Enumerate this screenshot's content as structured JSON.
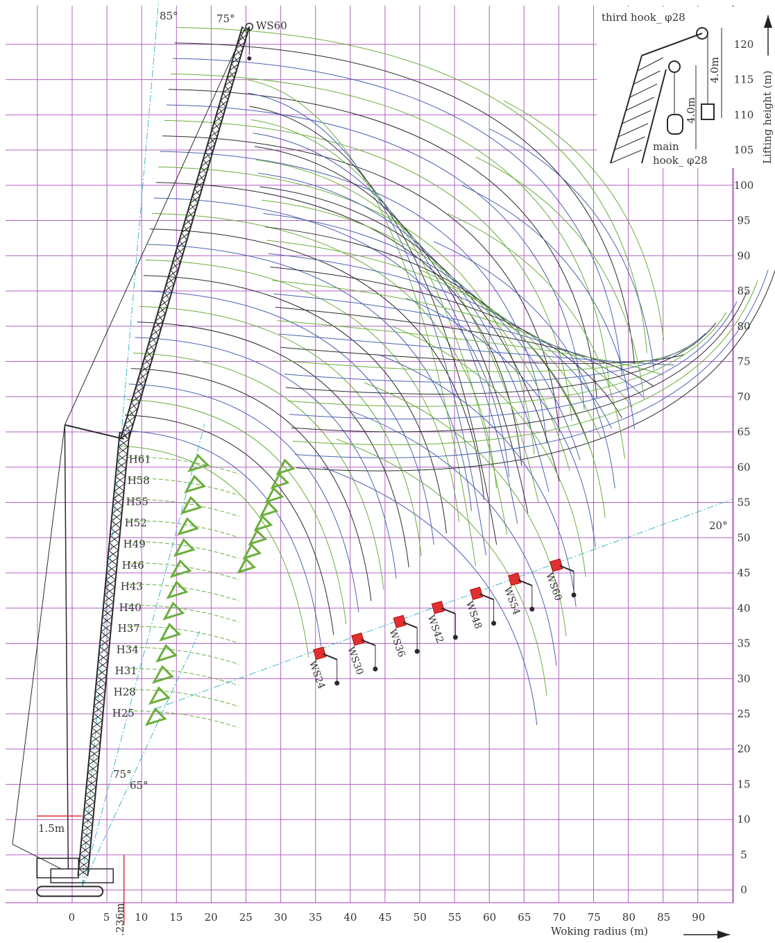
{
  "chart_data": {
    "type": "diagram",
    "xlabel": "Woking radius (m)",
    "ylabel": "Lifting height (m)",
    "x_ticks": [
      0,
      5,
      10,
      15,
      20,
      25,
      30,
      35,
      40,
      45,
      50,
      55,
      60,
      65,
      70,
      75,
      80,
      85,
      90
    ],
    "y_ticks": [
      0,
      5,
      10,
      15,
      20,
      25,
      30,
      35,
      40,
      45,
      50,
      55,
      60,
      65,
      70,
      75,
      80,
      85,
      90,
      95,
      100,
      105,
      110,
      115,
      120
    ],
    "xlim": [
      -9.5,
      95
    ],
    "ylim": [
      -1.8,
      125.5
    ],
    "angles": {
      "a85": "85°",
      "a75_top": "75°",
      "a75_bottom": "75°",
      "a65": "65°",
      "a20": "20°"
    },
    "dims": {
      "offset": "1.5m",
      "pivot": ".236m"
    },
    "main_boom_labels": [
      "H61",
      "H58",
      "H55",
      "H52",
      "H49",
      "H46",
      "H43",
      "H40",
      "H37",
      "H34",
      "H31",
      "H28",
      "H25"
    ],
    "main_boom_heights": [
      61,
      58,
      55,
      52,
      49,
      46,
      43,
      40,
      37,
      34,
      31,
      28,
      25
    ],
    "tip_label": "WS60",
    "jibs": [
      {
        "name": "WS24",
        "x": 35.5,
        "y": 33.5
      },
      {
        "name": "WS30",
        "x": 41,
        "y": 35.5
      },
      {
        "name": "WS36",
        "x": 47,
        "y": 38
      },
      {
        "name": "WS42",
        "x": 52.5,
        "y": 40
      },
      {
        "name": "WS48",
        "x": 58,
        "y": 42
      },
      {
        "name": "WS54",
        "x": 63.5,
        "y": 44
      },
      {
        "name": "WS60",
        "x": 69.5,
        "y": 46
      }
    ],
    "inset": {
      "third_hook": "third hook_ φ28",
      "main_hook_1": "main",
      "main_hook_2": "hook_ φ28",
      "dim1": "4.0m",
      "dim2": "4.0m"
    },
    "grid": true
  },
  "colors": {
    "grid": "#b060c0",
    "boom": "#2a2a2a",
    "green": "#6aae3c",
    "blue": "#4a62b0",
    "red": "#e03030",
    "dash": "#40b8c8"
  }
}
